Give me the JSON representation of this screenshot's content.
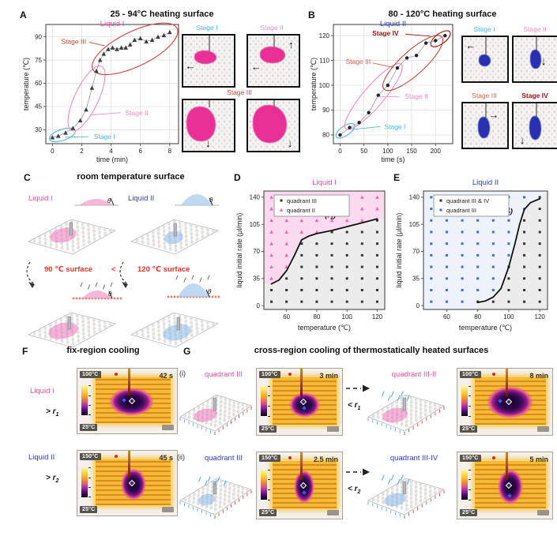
{
  "figure": {
    "panels": {
      "A": {
        "letter": "A",
        "title": "25 - 94°C heating surface"
      },
      "B": {
        "letter": "B",
        "title": "80 - 120°C heating surface"
      },
      "C": {
        "letter": "C",
        "title": "room temperature surface"
      },
      "D": {
        "letter": "D"
      },
      "E": {
        "letter": "E"
      },
      "F": {
        "letter": "F",
        "title": "fix-region cooling"
      },
      "G": {
        "letter": "G",
        "title": "cross-region cooling of thermostatically heated surfaces"
      }
    }
  },
  "colors": {
    "liquid1": "#ee4fa0",
    "liquid2": "#2b3fc0",
    "stage1": "#4ab8e0",
    "stage2": "#ef8ec4",
    "stage3": "#cc4437",
    "stage4": "#991111",
    "red_text": "#e8372a",
    "pink_marker": "#f45fb0",
    "blue_marker": "#3d6ccc",
    "black_marker": "#333333",
    "bgD_above": "#fbd9ee",
    "bgE_above": "#eef2fa",
    "bg_below": "#ececec",
    "photo_pink": "#e72f96",
    "photo_blue": "#2630b0"
  },
  "panelA": {
    "photo_labels": [
      {
        "label": "Stage I",
        "color": "#4ab8e0"
      },
      {
        "label": "Stage II",
        "color": "#ef8ec4"
      },
      {
        "label": "Stage III",
        "color": "#cc4437"
      }
    ]
  },
  "panelB": {
    "photo_labels": [
      {
        "label": "Stage I",
        "color": "#4ab8e0"
      },
      {
        "label": "Stage II",
        "color": "#ef8ec4"
      },
      {
        "label": "Stage III",
        "color": "#e0604e"
      },
      {
        "label": "Stage IV",
        "color": "#991111"
      }
    ]
  },
  "panelC": {
    "liquid1": "Liquid I",
    "liquid2": "Liquid II",
    "theta": "θ",
    "compare_left": "90 ℃ surface",
    "compare_op": "<",
    "compare_right": "120 ℃ surface"
  },
  "panelF": {
    "rows": [
      {
        "liquid": "Liquid I",
        "rate_pre": "> r",
        "rate_sub": "1",
        "time": "42 s",
        "tmax": "100°C",
        "tmin": "25°C"
      },
      {
        "liquid": "Liquid II",
        "rate_pre": "> r",
        "rate_sub": "2",
        "time": "45 s",
        "tmax": "150°C",
        "tmin": "25°C"
      }
    ]
  },
  "panelG": {
    "rows": [
      {
        "idx": "(i)",
        "before": "quadrant III",
        "after": "quadrant III-II",
        "rate_pre": "< r",
        "rate_sub": "1",
        "before_time": "3 min",
        "after_time": "8 min",
        "tmax": "100°C",
        "tmin": "25°C"
      },
      {
        "idx": "(ii)",
        "before": "quadrant III",
        "after": "quadrant III-IV",
        "rate_pre": "< r",
        "rate_sub": "2",
        "before_time": "2.5 min",
        "after_time": "5 min",
        "tmax": "150°C",
        "tmin": "25°C"
      }
    ]
  },
  "chart_data": [
    {
      "id": "A",
      "type": "line",
      "title": "Liquid I",
      "title_color": "#ee4fa0",
      "xlabel": "time (min)",
      "ylabel": "temperature (℃)",
      "xlim": [
        -0.45,
        8.6
      ],
      "ylim": [
        21,
        98
      ],
      "xticks": [
        0,
        2,
        4,
        6,
        8
      ],
      "yticks": [
        30,
        45,
        60,
        75,
        90
      ],
      "marker": "triangle",
      "grid": true,
      "x": [
        0,
        0.4,
        0.9,
        1.4,
        1.9,
        2.3,
        2.7,
        3.0,
        3.25,
        3.5,
        3.8,
        4.1,
        4.4,
        4.7,
        5.0,
        5.3,
        5.6,
        6.0,
        6.4,
        6.8,
        7.2,
        7.6,
        8.0
      ],
      "y": [
        25,
        26,
        28,
        31,
        36,
        43,
        57,
        68,
        75,
        79,
        82,
        83,
        82,
        83,
        83,
        85,
        88,
        89,
        87,
        88,
        90,
        91,
        93
      ],
      "ellipses": [
        {
          "x1": -0.2,
          "y1": 23.8,
          "x2": 1.55,
          "y2": 29.5,
          "w": 14,
          "color": "#4ab8e0"
        },
        {
          "x1": 1.3,
          "y1": 29.5,
          "x2": 3.35,
          "y2": 71,
          "w": 30,
          "color": "#ef8ec4"
        },
        {
          "x1": 2.75,
          "y1": 69,
          "x2": 8.5,
          "y2": 95.5,
          "w": 44,
          "color": "#cc4437"
        }
      ],
      "labels": [
        {
          "text": "Stage III",
          "x": 1.45,
          "y": 87,
          "color": "#cc4437",
          "line": [
            2.5,
            86.5,
            3.55,
            84.3
          ]
        },
        {
          "text": "Stage II",
          "x": 5.75,
          "y": 41,
          "color": "#ef8ec4",
          "line": [
            4.65,
            41,
            2.55,
            39.5
          ]
        },
        {
          "text": "Stage I",
          "x": 3.55,
          "y": 25.5,
          "color": "#4ab8e0",
          "line": [
            2.45,
            25.5,
            0.85,
            25.2
          ]
        }
      ]
    },
    {
      "id": "B",
      "type": "line",
      "title": "Liquid II",
      "title_color": "#2b3fc0",
      "xlabel": "time (s)",
      "ylabel": "temperature (℃)",
      "xlim": [
        -14,
        236
      ],
      "ylim": [
        76.5,
        124.5
      ],
      "xticks": [
        0,
        50,
        100,
        150,
        200
      ],
      "yticks": [
        80,
        90,
        100,
        110,
        120
      ],
      "marker": "circle",
      "grid": true,
      "x": [
        0,
        20,
        40,
        60,
        80,
        100,
        120,
        140,
        160,
        180,
        200,
        220
      ],
      "y": [
        80,
        83,
        85,
        89,
        96,
        100,
        107,
        111,
        112,
        117,
        118,
        120
      ],
      "ellipses": [
        {
          "x1": -8,
          "y1": 79.2,
          "x2": 30,
          "y2": 84.2,
          "w": 12,
          "color": "#4ab8e0"
        },
        {
          "x1": 12,
          "y1": 82.5,
          "x2": 128,
          "y2": 108.5,
          "w": 26,
          "color": "#ef8ec4"
        },
        {
          "x1": 92,
          "y1": 98.5,
          "x2": 213,
          "y2": 119.5,
          "w": 30,
          "color": "#cc4437"
        },
        {
          "x1": 191,
          "y1": 116,
          "x2": 230,
          "y2": 121.5,
          "w": 13,
          "color": "#991111"
        }
      ],
      "labels": [
        {
          "text": "Stage IV",
          "x": 95,
          "y": 121,
          "color": "#991111",
          "bold": true,
          "line": [
            137,
            120.6,
            189,
            119.8
          ]
        },
        {
          "text": "Stage III",
          "x": 38,
          "y": 109.5,
          "color": "#e0604e",
          "line": [
            68,
            109,
            112,
            107.2
          ]
        },
        {
          "text": "Stage II",
          "x": 160,
          "y": 95.5,
          "color": "#ef8ec4",
          "line": [
            126,
            95.5,
            80,
            95.3
          ]
        },
        {
          "text": "Stage I",
          "x": 115,
          "y": 83.4,
          "color": "#4ab8e0",
          "line": [
            84,
            83.4,
            26,
            82.2
          ]
        }
      ]
    },
    {
      "id": "D",
      "type": "scatter",
      "title": "Liquid I",
      "title_color": "#ee4fa0",
      "xlabel": "temperature (℃)",
      "ylabel": "liquid initial rate (μl/min)",
      "xlim": [
        45,
        125
      ],
      "ylim": [
        -5,
        148
      ],
      "xticks": [
        60,
        80,
        100,
        120
      ],
      "yticks": [
        0,
        35,
        70,
        105,
        140
      ],
      "x_cols": [
        50,
        60,
        70,
        80,
        90,
        100,
        110,
        120
      ],
      "y_rows": [
        5,
        20,
        35,
        50,
        65,
        80,
        95,
        110,
        125,
        140
      ],
      "legend": [
        {
          "marker": "square",
          "color": "#333333",
          "label": "quadrant III"
        },
        {
          "marker": "triangle",
          "color": "#f45fb0",
          "label": "quadrant II"
        }
      ],
      "curve": [
        [
          50,
          28
        ],
        [
          55,
          33
        ],
        [
          60,
          45
        ],
        [
          65,
          64
        ],
        [
          70,
          85
        ],
        [
          75,
          90
        ],
        [
          80,
          93
        ],
        [
          90,
          97
        ],
        [
          100,
          102
        ],
        [
          110,
          107
        ],
        [
          120,
          112
        ]
      ],
      "curve_extends_left": true,
      "curve_label": {
        "pre": "(r",
        "sub": "1",
        "post": ")",
        "x": 89,
        "y": 114
      },
      "above_min": {
        "50": 35,
        "60": 50,
        "70": 95,
        "80": 95,
        "90": 110,
        "100": 110,
        "110": 110,
        "120": 125
      },
      "above_color": "#f45fb0",
      "above_marker": "triangle",
      "below_color": "#333333",
      "below_marker": "square",
      "bg_above": "#fbd9ee",
      "bg_below": "#ececec"
    },
    {
      "id": "E",
      "type": "scatter",
      "title": "Liquid II",
      "title_color": "#2b3fc0",
      "xlabel": "temperature (℃)",
      "ylabel": "liquid initial rate (μl/min)",
      "xlim": [
        45,
        125
      ],
      "ylim": [
        -5,
        148
      ],
      "xticks": [
        60,
        80,
        100,
        120
      ],
      "yticks": [
        0,
        35,
        70,
        105,
        140
      ],
      "x_cols": [
        50,
        60,
        70,
        80,
        90,
        100,
        110,
        120
      ],
      "y_rows": [
        5,
        20,
        35,
        50,
        65,
        80,
        95,
        110,
        125,
        140
      ],
      "legend": [
        {
          "marker": "square",
          "color": "#333333",
          "label": "quadrant III & IV"
        },
        {
          "marker": "square",
          "color": "#3d6ccc",
          "label": "quadrant III"
        }
      ],
      "curve": [
        [
          80,
          4
        ],
        [
          85,
          6
        ],
        [
          90,
          11
        ],
        [
          95,
          22
        ],
        [
          100,
          50
        ],
        [
          104,
          80
        ],
        [
          107,
          105
        ],
        [
          110,
          124
        ],
        [
          114,
          133
        ],
        [
          120,
          138
        ]
      ],
      "curve_extends_left": false,
      "curve_label": {
        "pre": "(r",
        "sub": "2",
        "post": ")",
        "x": 99,
        "y": 119
      },
      "above_min": {
        "50": 5,
        "60": 5,
        "70": 5,
        "80": 20,
        "90": 20,
        "100": 65,
        "110": 125,
        "120": 999
      },
      "above_color": "#3d6ccc",
      "above_marker": "square",
      "below_color": "#333333",
      "below_marker": "square",
      "bg_above": "#eef2fa",
      "bg_below": "#ececec"
    }
  ]
}
